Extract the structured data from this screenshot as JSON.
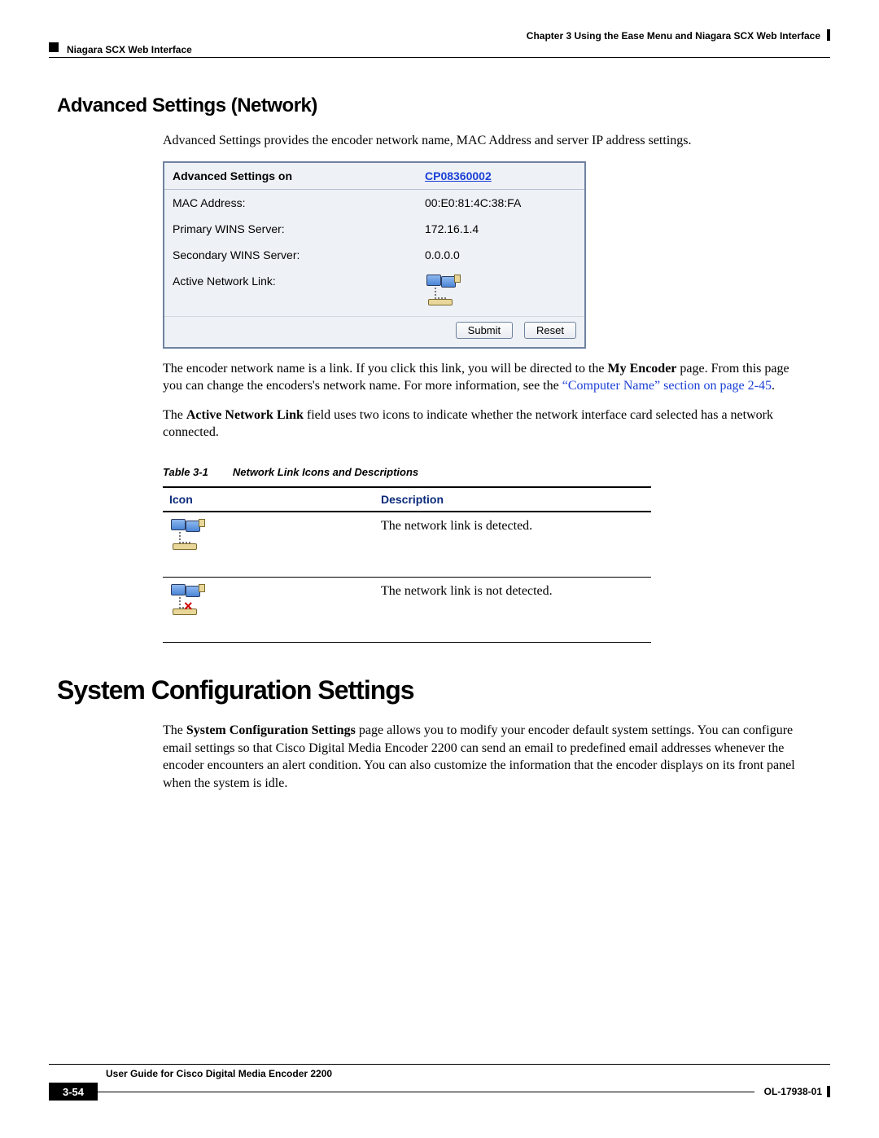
{
  "header": {
    "chapter": "Chapter 3      Using the Ease Menu and Niagara SCX Web Interface",
    "section": "Niagara SCX Web Interface"
  },
  "adv": {
    "heading": "Advanced Settings (Network)",
    "intro": "Advanced Settings provides the encoder network name, MAC Address and server IP address settings.",
    "box_title": "Advanced Settings on",
    "link_name": "CP08360002",
    "rows": {
      "mac_label": "MAC Address:",
      "mac_value": "00:E0:81:4C:38:FA",
      "pwins_label": "Primary WINS Server:",
      "pwins_value": "172.16.1.4",
      "swins_label": "Secondary WINS Server:",
      "swins_value": "0.0.0.0",
      "anl_label": "Active Network Link:"
    },
    "submit": "Submit",
    "reset": "Reset",
    "para2a": "The encoder network name is a link. If you click this link, you will be directed to the ",
    "para2b": "My Encoder",
    "para2c": " page. From this page you can change the encoders's network name. For more information, see the ",
    "para2link": "“Computer Name” section on page 2-45",
    "para2d": ".",
    "para3a": "The ",
    "para3b": "Active Network Link",
    "para3c": " field uses two icons to indicate whether the network interface card selected has a network connected."
  },
  "table": {
    "caption_num": "Table 3-1",
    "caption_txt": "Network Link Icons and Descriptions",
    "h_icon": "Icon",
    "h_desc": "Description",
    "row1": "The network link is detected.",
    "row2": "The network link is not detected."
  },
  "sys": {
    "heading": "System Configuration Settings",
    "para_a": "The ",
    "para_b": "System Configuration Settings",
    "para_c": " page allows you to modify your encoder default system settings. You can configure email settings so that Cisco Digital Media Encoder 2200 can send an email to predefined email addresses whenever the encoder encounters an alert condition. You can also customize the information that the encoder displays on its front panel when the system is idle."
  },
  "footer": {
    "title": "User Guide for Cisco Digital Media Encoder 2200",
    "page": "3-54",
    "doc": "OL-17938-01"
  }
}
